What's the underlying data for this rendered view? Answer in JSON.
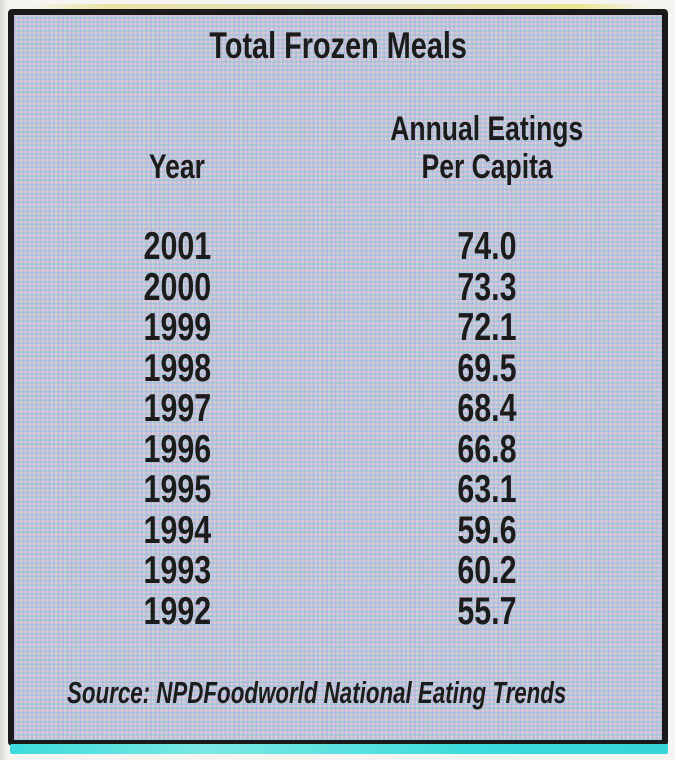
{
  "chart_data": {
    "type": "table",
    "title": "Total Frozen Meals",
    "columns": [
      "Year",
      "Annual Eatings Per Capita"
    ],
    "rows": [
      [
        2001,
        74.0
      ],
      [
        2000,
        73.3
      ],
      [
        1999,
        72.1
      ],
      [
        1998,
        69.5
      ],
      [
        1997,
        68.4
      ],
      [
        1996,
        66.8
      ],
      [
        1995,
        63.1
      ],
      [
        1994,
        59.6
      ],
      [
        1993,
        60.2
      ],
      [
        1992,
        55.7
      ]
    ],
    "source": "Source: NPDFoodworld National Eating Trends",
    "layout": "two centered columns, no gridlines, halftone lavender background, heavy black frame"
  },
  "panel": {
    "title": "Total Frozen Meals",
    "header": {
      "year": "Year",
      "value_line1": "Annual Eatings",
      "value_line2": "Per Capita"
    },
    "rows": [
      {
        "year": "2001",
        "value": "74.0"
      },
      {
        "year": "2000",
        "value": "73.3"
      },
      {
        "year": "1999",
        "value": "72.1"
      },
      {
        "year": "1998",
        "value": "69.5"
      },
      {
        "year": "1997",
        "value": "68.4"
      },
      {
        "year": "1996",
        "value": "66.8"
      },
      {
        "year": "1995",
        "value": "63.1"
      },
      {
        "year": "1994",
        "value": "59.6"
      },
      {
        "year": "1993",
        "value": "60.2"
      },
      {
        "year": "1992",
        "value": "55.7"
      }
    ],
    "source": "Source: NPDFoodworld National Eating Trends"
  },
  "colors": {
    "border": "#1a1a1a",
    "text": "#1c1c1c",
    "bottom_strip": "#3cdcdc",
    "page_bg": "#f5f4f0",
    "texture_cyan": "#6ec9e4",
    "texture_pink": "#e79ade"
  }
}
